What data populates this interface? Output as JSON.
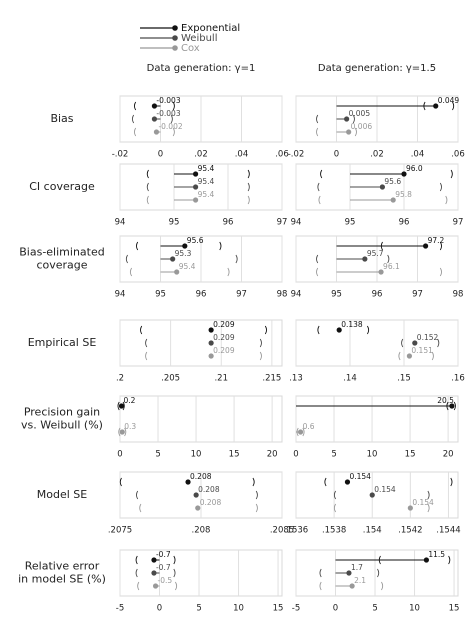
{
  "chart_data": {
    "type": "forest",
    "series": [
      {
        "name": "Exponential",
        "color": "#111111"
      },
      {
        "name": "Weibull",
        "color": "#4a4a4a"
      },
      {
        "name": "Cox",
        "color": "#999999"
      }
    ],
    "columns": [
      "Data generation: γ=1",
      "Data generation: γ=1.5"
    ],
    "rows": [
      {
        "label": [
          "Bias"
        ],
        "ref": 0,
        "panels": [
          {
            "xlim": [
              -0.02,
              0.06
            ],
            "xticks": [
              {
                "value": -0.02,
                "label": "-.02"
              },
              0,
              {
                "value": 0.02,
                "label": ".02"
              },
              {
                "value": 0.04,
                "label": ".04"
              },
              {
                "value": 0.06,
                "label": ".06"
              }
            ],
            "values": [
              -0.003,
              -0.003,
              -0.002
            ],
            "lower": [
              -0.013,
              -0.014,
              -0.013
            ],
            "upper": [
              0.007,
              0.006,
              0.007
            ]
          },
          {
            "xlim": [
              -0.02,
              0.06
            ],
            "xticks": [
              {
                "value": -0.02,
                "label": "-.02"
              },
              0,
              {
                "value": 0.02,
                "label": ".02"
              },
              {
                "value": 0.04,
                "label": ".04"
              },
              {
                "value": 0.06,
                "label": ".06"
              }
            ],
            "values": [
              0.049,
              0.005,
              0.006
            ],
            "lower": [
              0.043,
              -0.01,
              -0.01
            ],
            "upper": [
              0.058,
              0.009,
              0.01
            ]
          }
        ]
      },
      {
        "label": [
          "CI coverage"
        ],
        "ref": 95,
        "panels": [
          {
            "xlim": [
              94,
              97
            ],
            "xticks": [
              94,
              95,
              96,
              97
            ],
            "values": [
              95.4,
              95.4,
              95.4
            ],
            "lower": [
              94.5,
              94.5,
              94.5
            ],
            "upper": [
              96.4,
              96.4,
              96.4
            ]
          },
          {
            "xlim": [
              94,
              97
            ],
            "xticks": [
              94,
              95,
              96,
              97
            ],
            "values": [
              96,
              95.6,
              95.8
            ],
            "value_labels": [
              "96.0",
              "95.6",
              "95.8"
            ],
            "lower": [
              94.45,
              94.4,
              94.42
            ],
            "upper": [
              96.9,
              96.7,
              96.8
            ]
          }
        ]
      },
      {
        "label": [
          "Bias-eliminated",
          "coverage"
        ],
        "ref": 95,
        "panels": [
          {
            "xlim": [
              94,
              98
            ],
            "xticks": [
              94,
              95,
              96,
              97,
              98
            ],
            "values": [
              95.6,
              95.3,
              95.4
            ],
            "lower": [
              94.4,
              94.15,
              94.25
            ],
            "upper": [
              96.5,
              96.9,
              96.7
            ]
          },
          {
            "xlim": [
              94,
              98
            ],
            "xticks": [
              94,
              95,
              96,
              97,
              98
            ],
            "values": [
              97.2,
              95.7,
              96.1
            ],
            "lower": [
              96.1,
              94.5,
              94.5
            ],
            "upper": [
              97.6,
              96.3,
              97.6
            ]
          }
        ]
      },
      {
        "label": [
          "Empirical SE"
        ],
        "ref": null,
        "panels": [
          {
            "xlim": [
              0.2,
              0.216
            ],
            "xticks": [
              {
                "value": 0.2,
                "label": ".2"
              },
              {
                "value": 0.205,
                "label": ".205"
              },
              {
                "value": 0.21,
                "label": ".21"
              },
              {
                "value": 0.215,
                "label": ".215"
              }
            ],
            "values": [
              0.209,
              0.209,
              0.209
            ],
            "lower": [
              0.202,
              0.2025,
              0.2025
            ],
            "upper": [
              0.2145,
              0.214,
              0.214
            ]
          },
          {
            "xlim": [
              0.13,
              0.16
            ],
            "xticks": [
              {
                "value": 0.13,
                "label": ".13"
              },
              {
                "value": 0.14,
                "label": ".14"
              },
              {
                "value": 0.15,
                "label": ".15"
              },
              {
                "value": 0.16,
                "label": ".16"
              }
            ],
            "values": [
              0.138,
              0.152,
              0.151
            ],
            "lower": [
              0.134,
              0.1495,
              0.149
            ],
            "upper": [
              0.1435,
              0.1565,
              0.1555
            ]
          }
        ]
      },
      {
        "label": [
          "Precision gain",
          "vs. Weibull (%)"
        ],
        "ref": 0,
        "panels": [
          {
            "xlim": [
              0,
              21.3
            ],
            "xticks": [
              0,
              5,
              10,
              15,
              20
            ],
            "values": [
              0.2,
              null,
              0.3
            ],
            "lower": [
              -0.3,
              null,
              -0.2
            ],
            "upper": [
              0.6,
              null,
              0.8
            ]
          },
          {
            "xlim": [
              0,
              21.3
            ],
            "xticks": [
              0,
              5,
              10,
              15,
              20
            ],
            "values": [
              20.5,
              null,
              0.6
            ],
            "lower": [
              19.8,
              null,
              0.1
            ],
            "upper": [
              21,
              null,
              1.1
            ]
          }
        ]
      },
      {
        "label": [
          "Model SE"
        ],
        "ref": null,
        "panels": [
          {
            "xlim": [
              0.2075,
              0.2085
            ],
            "xticks": [
              {
                "value": 0.2075,
                "label": ".2075"
              },
              {
                "value": 0.208,
                "label": ".208"
              },
              {
                "value": 0.2085,
                "label": ".2085"
              }
            ],
            "values": [
              0.20792,
              0.20797,
              0.20798
            ],
            "value_labels": [
              "0.208",
              "0.208",
              "0.208"
            ],
            "lower": [
              0.2075,
              0.2076,
              0.20762
            ],
            "upper": [
              0.20833,
              0.20835,
              0.20835
            ]
          },
          {
            "xlim": [
              0.1536,
              0.15445
            ],
            "xticks": [
              {
                "value": 0.1536,
                "label": ".1536"
              },
              {
                "value": 0.1538,
                "label": ".1538"
              },
              {
                "value": 0.154,
                "label": ".154"
              },
              {
                "value": 0.1542,
                "label": ".1542"
              },
              {
                "value": 0.1544,
                "label": ".1544"
              }
            ],
            "values": [
              0.15387,
              0.154,
              0.1542
            ],
            "value_labels": [
              "0.154",
              "0.154",
              "0.154"
            ],
            "lower": [
              0.15375,
              0.1538,
              0.1538
            ],
            "upper": [
              0.15442,
              0.1543,
              0.1543
            ]
          }
        ]
      },
      {
        "label": [
          "Relative error",
          "in model SE (%)"
        ],
        "ref": 0,
        "panels": [
          {
            "xlim": [
              -5,
              15.5
            ],
            "xticks": [
              -5,
              0,
              5,
              10,
              15
            ],
            "values": [
              -0.7,
              -0.7,
              -0.5
            ],
            "lower": [
              -3,
              -3,
              -2.8
            ],
            "upper": [
              2,
              2,
              2.2
            ]
          },
          {
            "xlim": [
              -5,
              15.5
            ],
            "xticks": [
              -5,
              0,
              5,
              10,
              15
            ],
            "values": [
              11.5,
              1.7,
              2.1
            ],
            "lower": [
              5.5,
              -2,
              -2
            ],
            "upper": [
              14.5,
              5.5,
              6
            ]
          }
        ]
      }
    ]
  }
}
